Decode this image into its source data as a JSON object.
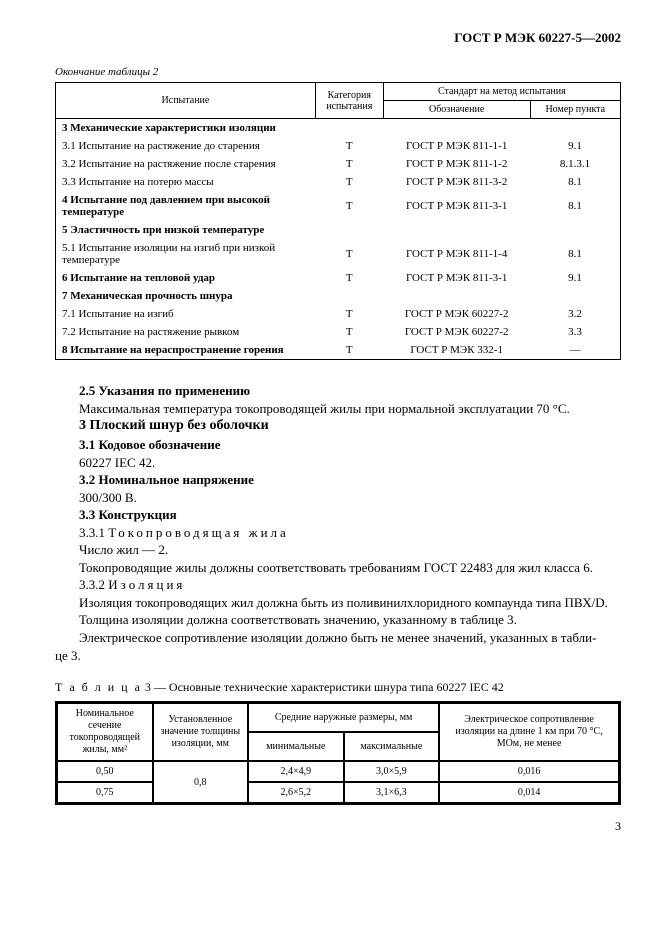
{
  "doc_header": "ГОСТ Р МЭК 60227-5—2002",
  "table2_caption": "Окончание таблицы 2",
  "t2": {
    "head": {
      "c1": "Испытание",
      "c2": "Категория испытания",
      "c3": "Стандарт на метод испытания",
      "c3a": "Обозначение",
      "c3b": "Номер пункта"
    },
    "col_widths": [
      "46%",
      "12%",
      "26%",
      "16%"
    ],
    "rows": [
      {
        "test": "3 Механические характеристики изоляции",
        "cat": "",
        "std": "",
        "pt": "",
        "bold": true
      },
      {
        "test": "3.1 Испытание на растяжение до старения",
        "cat": "Т",
        "std": "ГОСТ Р МЭК 811-1-1",
        "pt": "9.1"
      },
      {
        "test": "3.2 Испытание на растяжение после старения",
        "cat": "Т",
        "std": "ГОСТ Р МЭК 811-1-2",
        "pt": "8.1.3.1"
      },
      {
        "test": "3.3 Испытание на потерю массы",
        "cat": "Т",
        "std": "ГОСТ Р МЭК 811-3-2",
        "pt": "8.1"
      },
      {
        "test": "4 Испытание под давлением при высокой температуре",
        "cat": "Т",
        "std": "ГОСТ Р МЭК 811-3-1",
        "pt": "8.1",
        "bold": true
      },
      {
        "test": "5 Эластичность при низкой температуре",
        "cat": "",
        "std": "",
        "pt": "",
        "bold": true
      },
      {
        "test": "5.1 Испытание изоляции на изгиб при низкой температуре",
        "cat": "Т",
        "std": "ГОСТ Р МЭК 811-1-4",
        "pt": "8.1"
      },
      {
        "test": "6 Испытание на тепловой удар",
        "cat": "Т",
        "std": "ГОСТ Р МЭК 811-3-1",
        "pt": "9.1",
        "bold": true
      },
      {
        "test": "7 Механическая прочность шнура",
        "cat": "",
        "std": "",
        "pt": "",
        "bold": true
      },
      {
        "test": "7.1 Испытание на изгиб",
        "cat": "Т",
        "std": "ГОСТ Р МЭК 60227-2",
        "pt": "3.2"
      },
      {
        "test": "7.2 Испытание на растяжение рывком",
        "cat": "Т",
        "std": "ГОСТ Р МЭК 60227-2",
        "pt": "3.3"
      },
      {
        "test": "8 Испытание на нераспространение горения",
        "cat": "Т",
        "std": "ГОСТ Р МЭК 332-1",
        "pt": "—",
        "bold": true
      }
    ]
  },
  "body": {
    "p1_bold": "2.5 Указания по применению",
    "p1": "Максимальная температура токопроводящей жилы при нормальной эксплуатации 70 °С.",
    "h3": "3 Плоский шнур без оболочки",
    "p31_bold": "3.1 Кодовое обозначение",
    "p31": "60227 IEC 42.",
    "p32_bold": "3.2 Номинальное напряжение",
    "p32": "300/300 В.",
    "p33_bold": "3.3 Конструкция",
    "p331_num": "3.3.1",
    "p331_sp": "Токопроводящая жила",
    "p331a": "Число жил — 2.",
    "p331b": "Токопроводящие жилы должны соответствовать требованиям ГОСТ 22483 для жил класса 6.",
    "p332_num": "3.3.2",
    "p332_sp": "Изоляция",
    "p332a": "Изоляция токопроводящих жил должна быть из поливинилхлоридного компаунда типа ПВХ/D.",
    "p332b": "Толщина изоляции должна соответствовать значению, указанному в таблице 3.",
    "p332c_a": "Электрическое сопротивление изоляции должно быть не менее значений, указанных в табли-",
    "p332c_b": "це 3."
  },
  "t3_caption_lbl": "Т а б л и ц а",
  "t3_caption_rest": " 3 — Основные технические характеристики шнура типа 60227 IEC 42",
  "t3": {
    "head": {
      "c1": "Номинальное сечение токопроводящей жилы, мм²",
      "c2": "Установленное значение толщины изоляции, мм",
      "c3": "Средние наружные размеры, мм",
      "c3a": "минимальные",
      "c3b": "максимальные",
      "c4": "Электрическое сопротивление изоляции на длине 1 км при 70 °С, МОм, не менее"
    },
    "col_widths": [
      "17%",
      "17%",
      "17%",
      "17%",
      "32%"
    ],
    "rows": [
      {
        "a": "0,50",
        "b": "0,8",
        "c": "2,4×4,9",
        "d": "3,0×5,9",
        "e": "0,016"
      },
      {
        "a": "0,75",
        "c": "2,6×5,2",
        "d": "3,1×6,3",
        "e": "0,014"
      }
    ]
  },
  "page_num": "3"
}
